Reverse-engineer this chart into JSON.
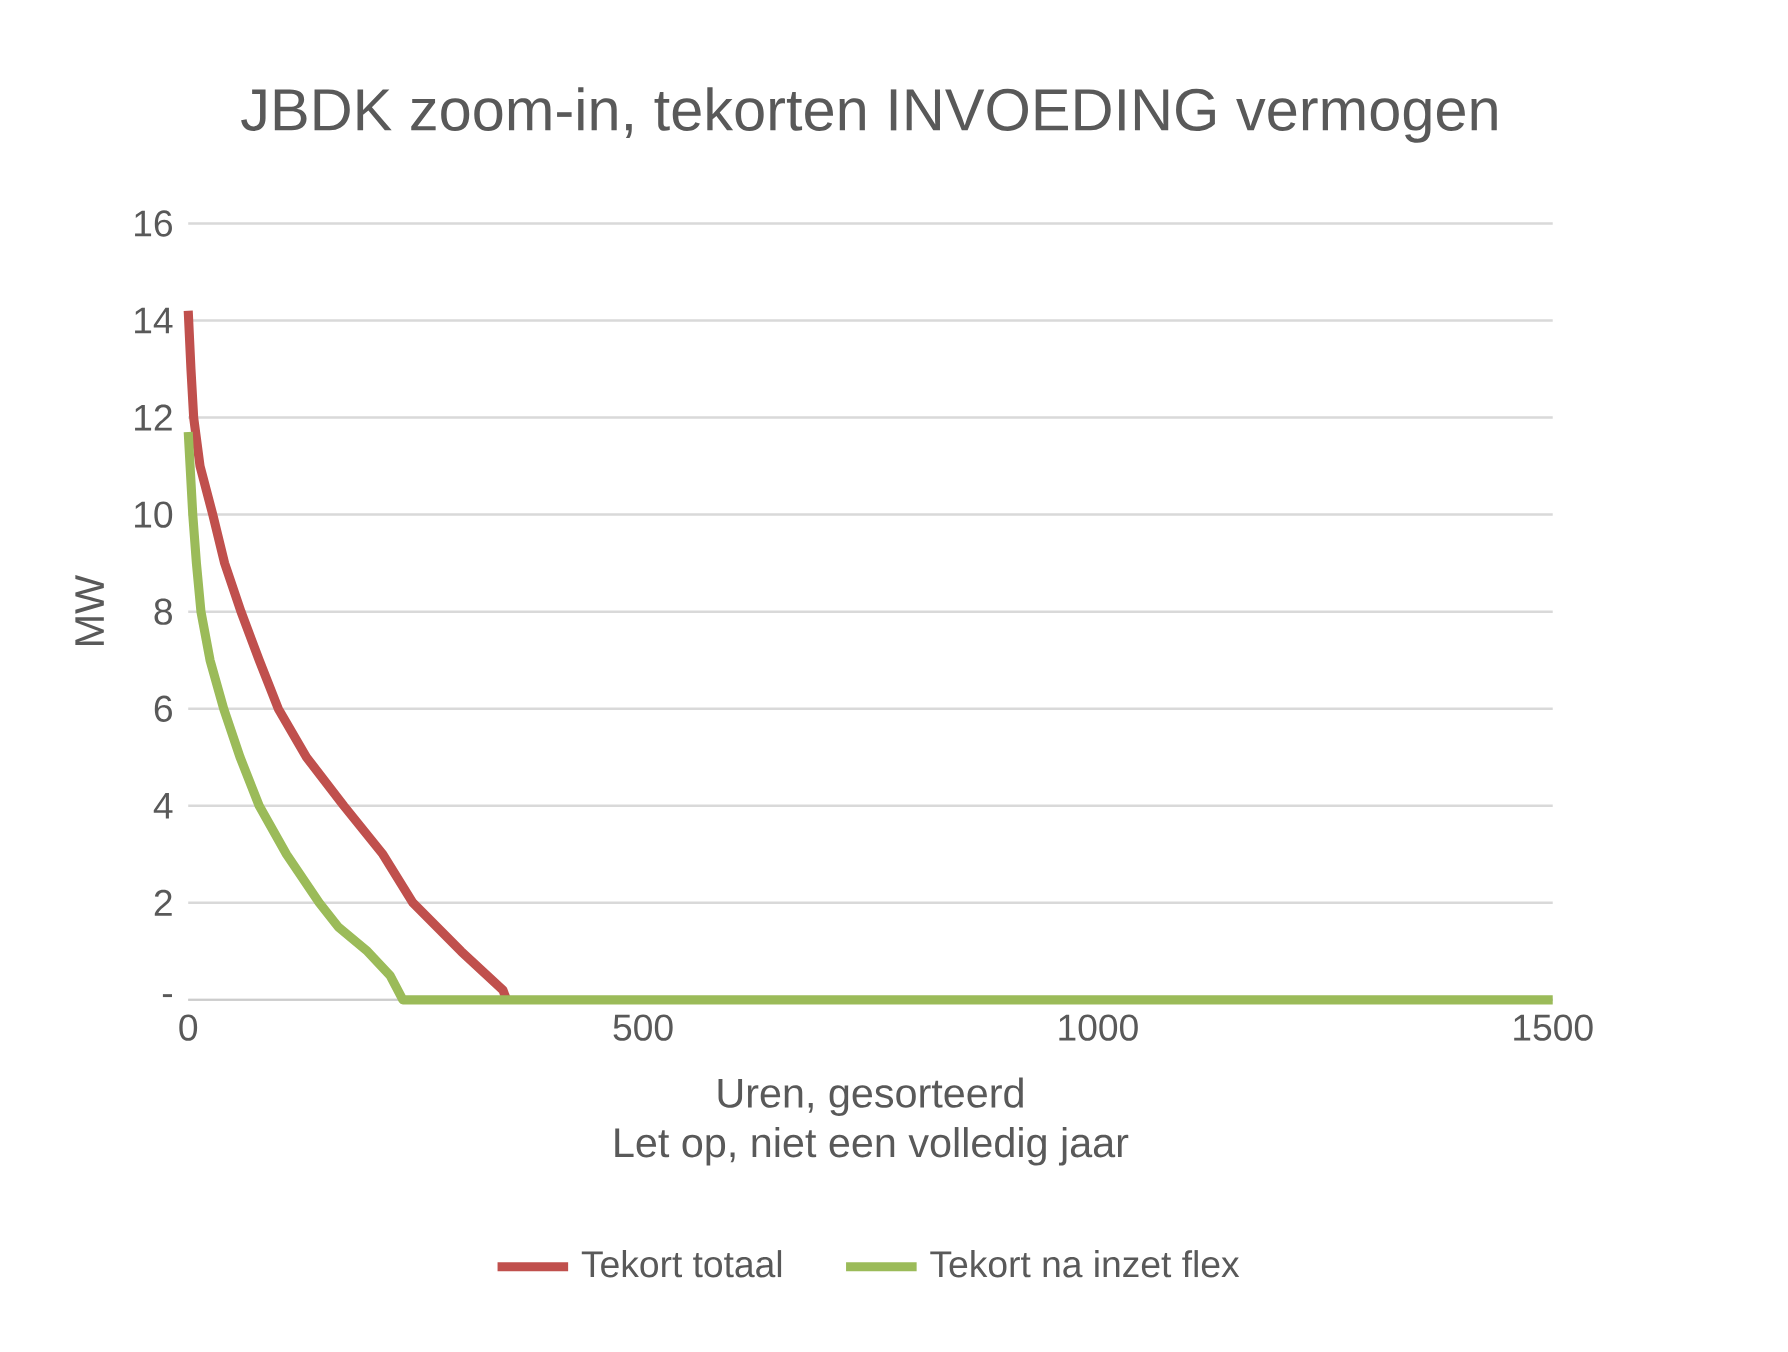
{
  "chart_data": {
    "type": "line",
    "title": "JBDK zoom-in, tekorten INVOEDING vermogen",
    "xlabel": "Uren, gesorteerd",
    "annotations": [
      "Let op, niet een volledig jaar"
    ],
    "ylabel": "MW",
    "xlim": [
      0,
      1500
    ],
    "xticks": [
      0,
      500,
      1000,
      1500
    ],
    "ylim": [
      0,
      16
    ],
    "yticks": [
      {
        "value": 0,
        "label": "-"
      },
      2,
      4,
      6,
      8,
      10,
      12,
      14,
      16
    ],
    "grid": "y",
    "legend": "bottom",
    "marker": "none",
    "line_style": "solid",
    "series": [
      {
        "name": "Tekort totaal",
        "color": "#c0504d",
        "x": [
          0,
          3,
          6,
          13,
          27,
          40,
          58,
          78,
          99,
          130,
          171,
          214,
          247,
          300,
          346,
          350
        ],
        "values": [
          14.2,
          13,
          12,
          11,
          10,
          9,
          8,
          7,
          6,
          5,
          4,
          3,
          2,
          1,
          0.2,
          0
        ]
      },
      {
        "name": "Tekort na inzet flex",
        "color": "#9bbb59",
        "x": [
          0,
          5,
          9,
          14,
          24,
          39,
          57,
          78,
          108,
          144,
          165,
          197,
          222,
          236,
          1500
        ],
        "values": [
          11.7,
          10,
          9,
          8,
          7,
          6,
          5,
          4,
          3,
          2,
          1.5,
          1,
          0.5,
          0,
          0
        ]
      }
    ]
  }
}
